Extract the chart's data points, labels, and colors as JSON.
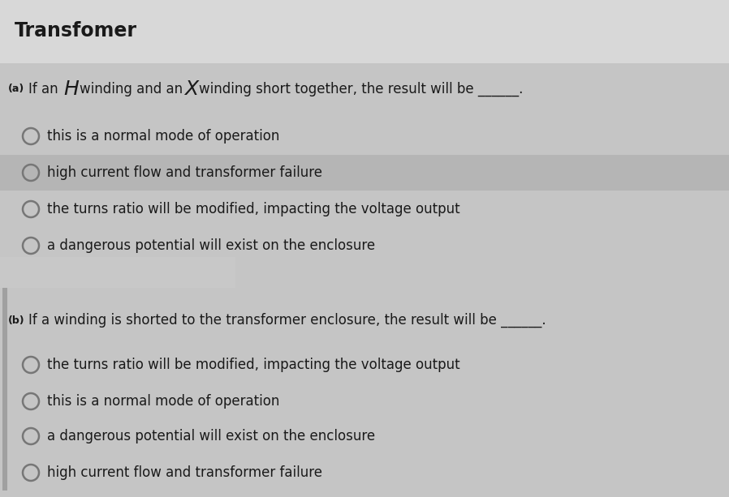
{
  "title": "Transfomer",
  "bg_color": "#c5c5c5",
  "title_area_color": "#d8d8d8",
  "highlight_row_color": "#b5b5b5",
  "separator_color": "#c0c0c0",
  "left_bar_color": "#a0a0a0",
  "text_color": "#1a1a1a",
  "circle_edge_color": "#777777",
  "options_a": [
    "this is a normal mode of operation",
    "high current flow and transformer failure",
    "the turns ratio will be modified, impacting the voltage output",
    "a dangerous potential will exist on the enclosure"
  ],
  "options_b": [
    "the turns ratio will be modified, impacting the voltage output",
    "this is a normal mode of operation",
    "a dangerous potential will exist on the enclosure",
    "high current flow and transformer failure"
  ],
  "highlighted_option_a": 1
}
